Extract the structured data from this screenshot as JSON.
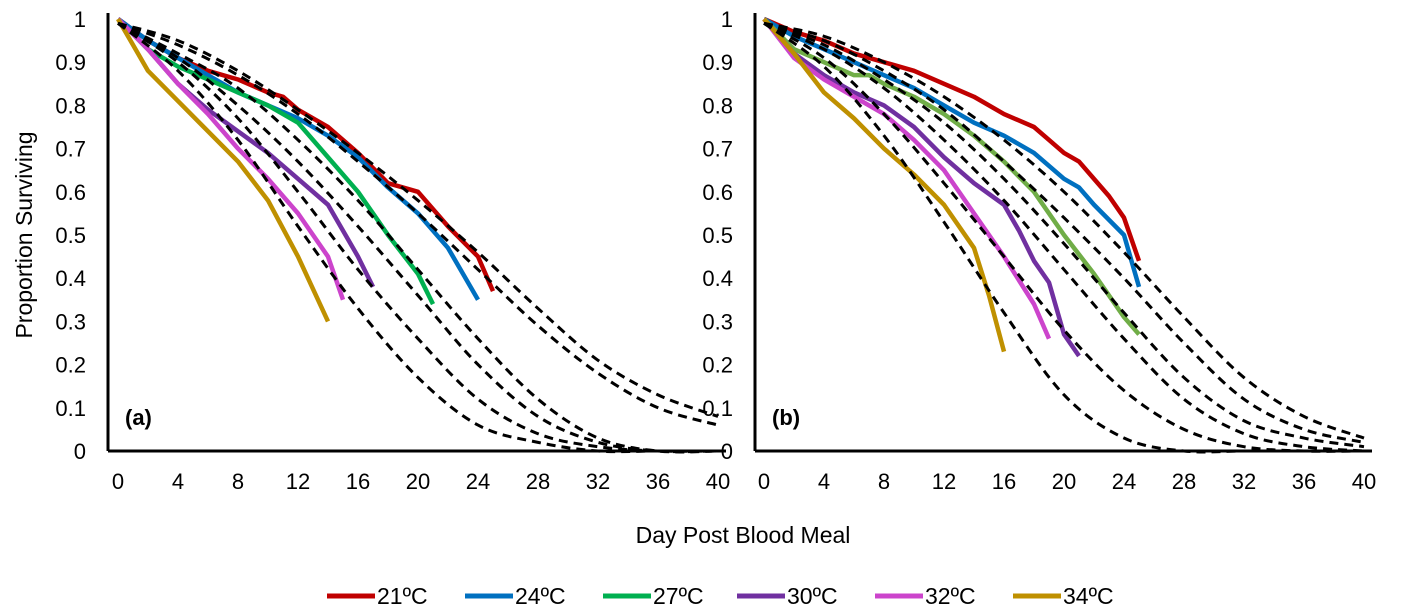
{
  "figure": {
    "ylabel": "Proportion Surviving",
    "xlabel": "Day Post Blood Meal"
  },
  "legend": [
    {
      "label": "21ºC",
      "color": "#C00000"
    },
    {
      "label": "24ºC",
      "color": "#0070C0"
    },
    {
      "label": "27ºC",
      "color": "#00B050"
    },
    {
      "label": "30ºC",
      "color": "#7030A0"
    },
    {
      "label": "32ºC",
      "color": "#CC44CC"
    },
    {
      "label": "34ºC",
      "color": "#BF9000"
    }
  ],
  "chart_data": [
    {
      "type": "line",
      "panel_label": "(a)",
      "xlim": [
        0,
        40
      ],
      "ylim": [
        0,
        1
      ],
      "xticks": [
        "0",
        "4",
        "8",
        "12",
        "16",
        "20",
        "24",
        "28",
        "32",
        "36",
        "40"
      ],
      "yticks": [
        "0",
        "0.1",
        "0.2",
        "0.3",
        "0.4",
        "0.5",
        "0.6",
        "0.7",
        "0.8",
        "0.9",
        "1"
      ],
      "series": [
        {
          "name": "21ºC",
          "color": "#C00000",
          "x": [
            0,
            2,
            4,
            6,
            8,
            10,
            11,
            12,
            14,
            16,
            18,
            20,
            22,
            24,
            25
          ],
          "y": [
            1,
            0.95,
            0.91,
            0.88,
            0.86,
            0.83,
            0.82,
            0.79,
            0.75,
            0.69,
            0.62,
            0.6,
            0.52,
            0.45,
            0.37
          ]
        },
        {
          "name": "24ºC",
          "color": "#0070C0",
          "x": [
            0,
            2,
            4,
            6,
            8,
            10,
            12,
            14,
            16,
            18,
            20,
            22,
            24
          ],
          "y": [
            1,
            0.95,
            0.91,
            0.87,
            0.83,
            0.8,
            0.77,
            0.73,
            0.68,
            0.61,
            0.55,
            0.47,
            0.35
          ]
        },
        {
          "name": "27ºC",
          "color": "#00B050",
          "x": [
            0,
            2,
            4,
            6,
            8,
            10,
            12,
            14,
            16,
            18,
            20,
            21
          ],
          "y": [
            1,
            0.93,
            0.89,
            0.86,
            0.83,
            0.8,
            0.76,
            0.68,
            0.6,
            0.5,
            0.41,
            0.34
          ]
        },
        {
          "name": "30ºC",
          "color": "#7030A0",
          "x": [
            0,
            2,
            4,
            6,
            8,
            10,
            12,
            14,
            16,
            17
          ],
          "y": [
            1,
            0.93,
            0.85,
            0.79,
            0.74,
            0.69,
            0.63,
            0.57,
            0.45,
            0.38
          ]
        },
        {
          "name": "32ºC",
          "color": "#CC44CC",
          "x": [
            0,
            2,
            4,
            6,
            8,
            10,
            12,
            14,
            15
          ],
          "y": [
            1,
            0.93,
            0.85,
            0.78,
            0.7,
            0.63,
            0.55,
            0.45,
            0.35
          ]
        },
        {
          "name": "34ºC",
          "color": "#BF9000",
          "x": [
            0,
            2,
            4,
            6,
            8,
            10,
            12,
            14
          ],
          "y": [
            1,
            0.88,
            0.81,
            0.74,
            0.67,
            0.58,
            0.45,
            0.3
          ]
        }
      ],
      "fitted_curves": [
        {
          "x": [
            0,
            4,
            8,
            12,
            16,
            20,
            24,
            28,
            32,
            36,
            40
          ],
          "y": [
            0.99,
            0.95,
            0.88,
            0.79,
            0.69,
            0.58,
            0.46,
            0.33,
            0.21,
            0.13,
            0.08
          ]
        },
        {
          "x": [
            0,
            4,
            8,
            12,
            16,
            20,
            24,
            28,
            32,
            36,
            40
          ],
          "y": [
            0.99,
            0.94,
            0.87,
            0.78,
            0.67,
            0.55,
            0.42,
            0.29,
            0.18,
            0.1,
            0.06
          ]
        },
        {
          "x": [
            0,
            4,
            8,
            12,
            16,
            20,
            24,
            28,
            32,
            36,
            40
          ],
          "y": [
            0.99,
            0.92,
            0.84,
            0.72,
            0.58,
            0.42,
            0.26,
            0.12,
            0.03,
            0.0,
            0.0
          ]
        },
        {
          "x": [
            0,
            4,
            8,
            12,
            16,
            20,
            24,
            28,
            32,
            36,
            40
          ],
          "y": [
            0.99,
            0.91,
            0.8,
            0.67,
            0.52,
            0.36,
            0.2,
            0.08,
            0.02,
            0.0,
            0.0
          ]
        },
        {
          "x": [
            0,
            4,
            8,
            12,
            16,
            20,
            24,
            28,
            32,
            36,
            40
          ],
          "y": [
            0.99,
            0.9,
            0.77,
            0.6,
            0.42,
            0.26,
            0.12,
            0.04,
            0.01,
            0.0,
            0.0
          ]
        },
        {
          "x": [
            0,
            4,
            8,
            12,
            16,
            20,
            24,
            28,
            32,
            36,
            40
          ],
          "y": [
            0.99,
            0.88,
            0.72,
            0.52,
            0.33,
            0.17,
            0.06,
            0.02,
            0.0,
            0.0,
            0.0
          ]
        }
      ]
    },
    {
      "type": "line",
      "panel_label": "(b)",
      "xlim": [
        0,
        40
      ],
      "ylim": [
        0,
        1
      ],
      "xticks": [
        "0",
        "4",
        "8",
        "12",
        "16",
        "20",
        "24",
        "28",
        "32",
        "36",
        "40"
      ],
      "yticks": [
        "0",
        "0.1",
        "0.2",
        "0.3",
        "0.4",
        "0.5",
        "0.6",
        "0.7",
        "0.8",
        "0.9",
        "1"
      ],
      "series": [
        {
          "name": "21ºC",
          "color": "#C00000",
          "x": [
            0,
            2,
            4,
            6,
            8,
            10,
            12,
            14,
            16,
            18,
            19,
            20,
            21,
            22,
            23,
            24,
            25
          ],
          "y": [
            1,
            0.97,
            0.95,
            0.92,
            0.9,
            0.88,
            0.85,
            0.82,
            0.78,
            0.75,
            0.72,
            0.69,
            0.67,
            0.63,
            0.59,
            0.54,
            0.44
          ]
        },
        {
          "name": "24ºC",
          "color": "#0070C0",
          "x": [
            0,
            2,
            4,
            6,
            8,
            10,
            12,
            14,
            16,
            18,
            20,
            21,
            22,
            24,
            25
          ],
          "y": [
            1,
            0.96,
            0.93,
            0.9,
            0.87,
            0.84,
            0.8,
            0.76,
            0.73,
            0.69,
            0.63,
            0.61,
            0.57,
            0.5,
            0.38
          ]
        },
        {
          "name": "27ºC",
          "color": "#70AD47",
          "x": [
            0,
            2,
            4,
            6,
            7,
            8,
            10,
            12,
            14,
            16,
            18,
            20,
            22,
            24,
            25
          ],
          "y": [
            1,
            0.93,
            0.9,
            0.87,
            0.87,
            0.85,
            0.82,
            0.78,
            0.73,
            0.67,
            0.6,
            0.5,
            0.41,
            0.31,
            0.27
          ]
        },
        {
          "name": "30ºC",
          "color": "#7030A0",
          "x": [
            0,
            2,
            4,
            6,
            8,
            10,
            12,
            14,
            16,
            17,
            18,
            19,
            20,
            21
          ],
          "y": [
            1,
            0.92,
            0.87,
            0.83,
            0.8,
            0.75,
            0.68,
            0.62,
            0.57,
            0.51,
            0.44,
            0.39,
            0.27,
            0.22
          ]
        },
        {
          "name": "32ºC",
          "color": "#CC44CC",
          "x": [
            0,
            2,
            4,
            6,
            8,
            10,
            12,
            14,
            16,
            18,
            19
          ],
          "y": [
            1,
            0.91,
            0.86,
            0.82,
            0.78,
            0.72,
            0.65,
            0.55,
            0.45,
            0.34,
            0.26
          ]
        },
        {
          "name": "34ºC",
          "color": "#BF9000",
          "x": [
            0,
            2,
            4,
            6,
            8,
            10,
            12,
            14,
            15,
            16
          ],
          "y": [
            1,
            0.92,
            0.83,
            0.77,
            0.7,
            0.64,
            0.57,
            0.47,
            0.36,
            0.23
          ]
        }
      ],
      "fitted_curves": [
        {
          "x": [
            0,
            4,
            8,
            12,
            16,
            20,
            24,
            28,
            32,
            36,
            40
          ],
          "y": [
            0.99,
            0.96,
            0.9,
            0.82,
            0.72,
            0.6,
            0.46,
            0.31,
            0.17,
            0.08,
            0.03
          ]
        },
        {
          "x": [
            0,
            4,
            8,
            12,
            16,
            20,
            24,
            28,
            32,
            36,
            40
          ],
          "y": [
            0.99,
            0.95,
            0.88,
            0.79,
            0.67,
            0.54,
            0.4,
            0.25,
            0.12,
            0.05,
            0.02
          ]
        },
        {
          "x": [
            0,
            4,
            8,
            12,
            16,
            20,
            24,
            28,
            32,
            36,
            40
          ],
          "y": [
            0.99,
            0.94,
            0.86,
            0.76,
            0.63,
            0.48,
            0.32,
            0.17,
            0.07,
            0.03,
            0.01
          ]
        },
        {
          "x": [
            0,
            4,
            8,
            12,
            16,
            20,
            24,
            28,
            32,
            36,
            40
          ],
          "y": [
            0.99,
            0.93,
            0.84,
            0.72,
            0.58,
            0.42,
            0.26,
            0.12,
            0.04,
            0.01,
            0.0
          ]
        },
        {
          "x": [
            0,
            4,
            8,
            12,
            16,
            20,
            24,
            28,
            32,
            36,
            40
          ],
          "y": [
            0.99,
            0.91,
            0.78,
            0.62,
            0.45,
            0.28,
            0.14,
            0.05,
            0.01,
            0.0,
            0.0
          ]
        },
        {
          "x": [
            0,
            4,
            8,
            12,
            16,
            20,
            24,
            28,
            32,
            36,
            40
          ],
          "y": [
            0.99,
            0.89,
            0.73,
            0.53,
            0.32,
            0.13,
            0.03,
            0.0,
            0.0,
            0.0,
            0.0
          ]
        }
      ]
    }
  ]
}
